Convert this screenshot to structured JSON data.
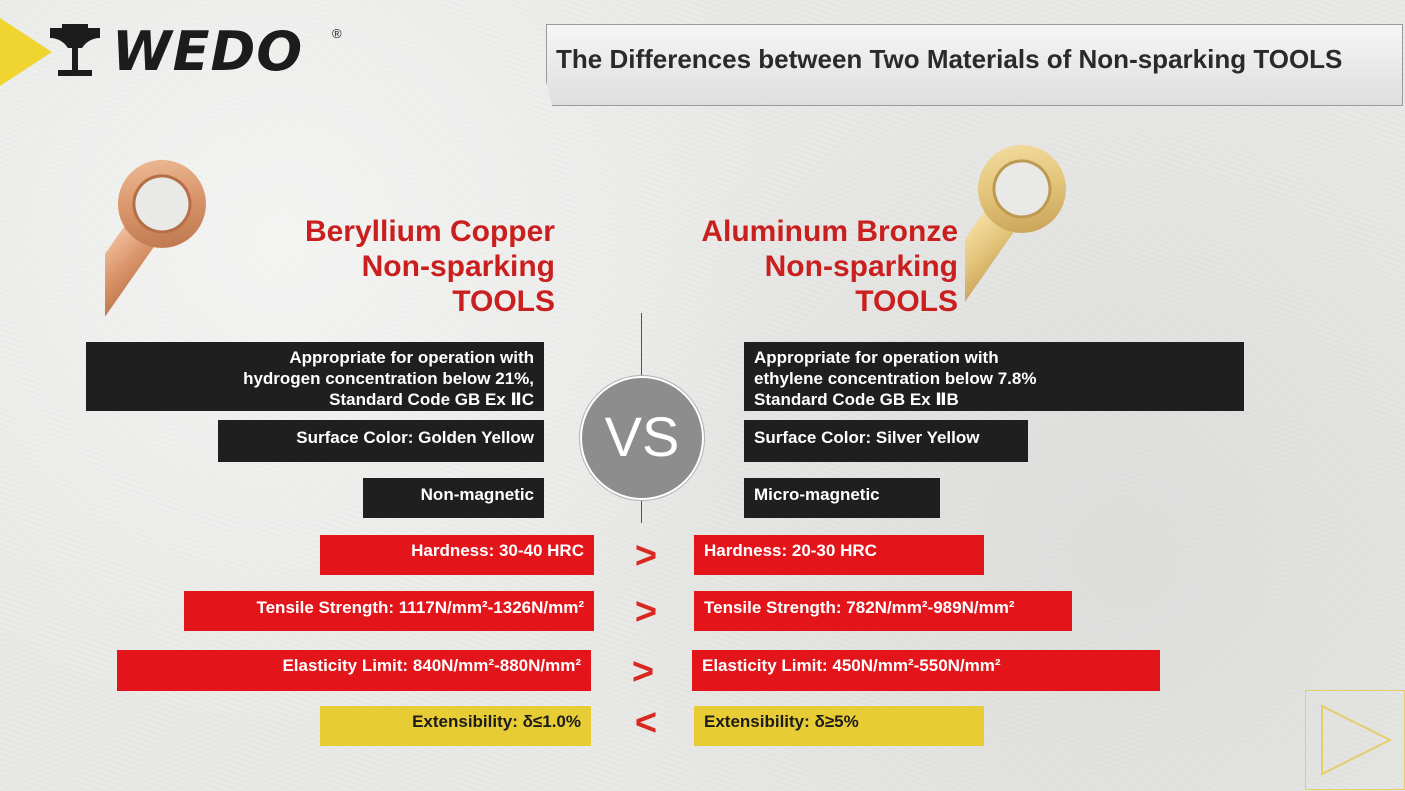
{
  "brand": {
    "name": "WEDO",
    "registered": "®"
  },
  "title": "The Differences between Two Materials of Non-sparking TOOLS",
  "vs_label": "VS",
  "left": {
    "heading": [
      "Beryllium Copper",
      "Non-sparking",
      "TOOLS"
    ],
    "application": [
      "Appropriate for operation with",
      "hydrogen concentration below 21%,",
      "Standard Code  GB Ex ⅡC"
    ],
    "surface_color": "Surface Color:  Golden Yellow",
    "magnetism": "Non-magnetic",
    "hardness": "Hardness: 30-40 HRC",
    "tensile": "Tensile Strength: 1117N/mm²-1326N/mm²",
    "elasticity": "Elasticity Limit: 840N/mm²-880N/mm²",
    "extensibility": "Extensibility: δ≤1.0%"
  },
  "right": {
    "heading": [
      "Aluminum Bronze",
      "Non-sparking",
      "TOOLS"
    ],
    "application": [
      "Appropriate for operation with",
      "ethylene concentration below 7.8%",
      "Standard Code GB Ex ⅡB"
    ],
    "surface_color": "Surface Color: Silver Yellow",
    "magnetism": "Micro-magnetic",
    "hardness": "Hardness: 20-30 HRC",
    "tensile": "Tensile Strength: 782N/mm²-989N/mm²",
    "elasticity": "Elasticity Limit: 450N/mm²-550N/mm²",
    "extensibility": "Extensibility: δ≥5%"
  },
  "comparisons": {
    "hardness": ">",
    "tensile": ">",
    "elasticity": ">",
    "extensibility": "<"
  },
  "colors": {
    "red_box": "#e4141b",
    "dark_box": "#1f1f1f",
    "yellow_box": "#e8cc35",
    "heading_red": "#c9201f",
    "vs_grey": "#8d8d8d",
    "beryllium_copper": "#d9946a",
    "aluminum_bronze": "#e3c47a"
  }
}
